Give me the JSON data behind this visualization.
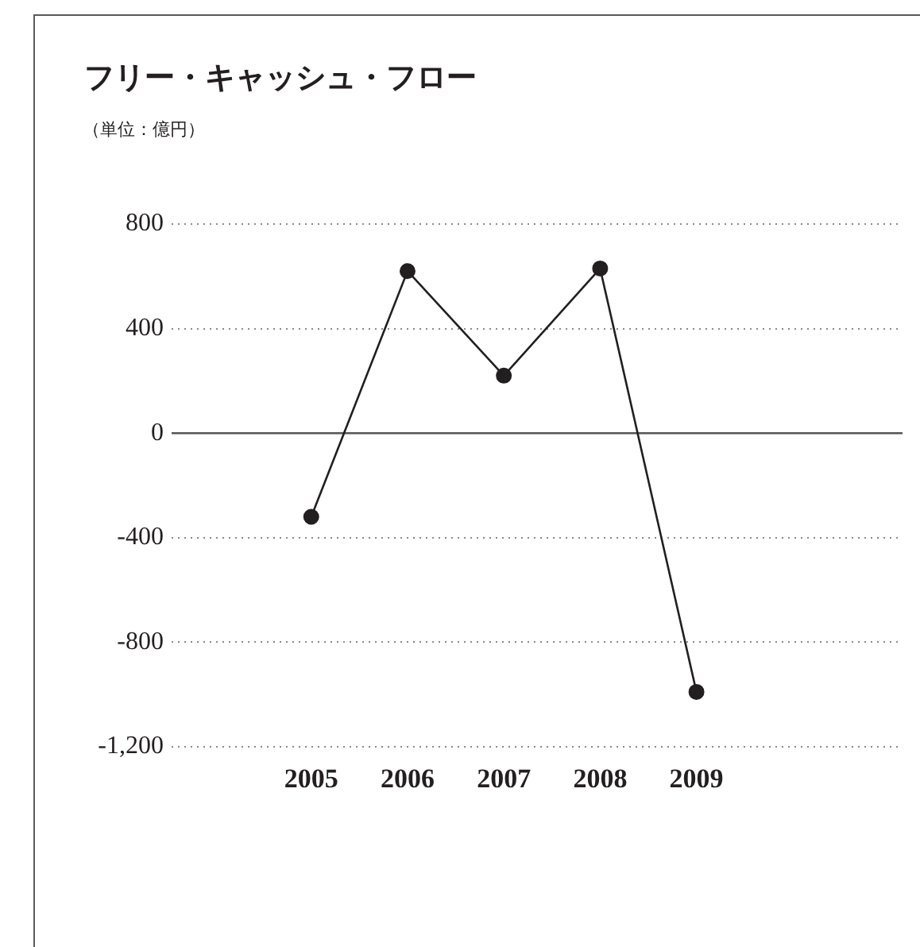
{
  "chart_data": {
    "type": "line",
    "title": "フリー・キャッシュ・フロー",
    "subtitle": "（単位：億円）",
    "categories": [
      "2005",
      "2006",
      "2007",
      "2008",
      "2009"
    ],
    "series": [
      {
        "color": "#231f20",
        "values": [
          -320,
          620,
          220,
          630,
          -990
        ]
      }
    ],
    "ylim": [
      -1200,
      800
    ],
    "yticks": [
      {
        "value": -1200,
        "label": "-1,200"
      },
      -800,
      -400,
      0,
      400,
      800
    ],
    "grid": "y",
    "marker": "circle",
    "line_style": "solid",
    "ref_lines": [
      {
        "axis": "y",
        "value": 0,
        "color": "#555555"
      }
    ]
  }
}
